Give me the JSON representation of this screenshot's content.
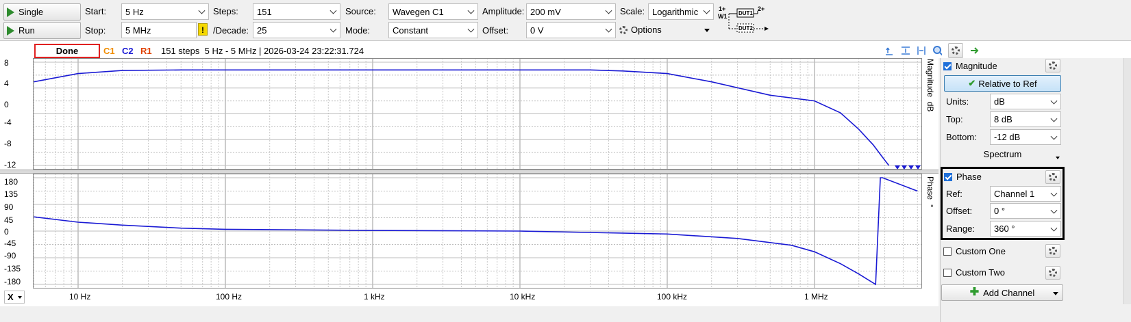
{
  "toolbar": {
    "single_label": "Single",
    "run_label": "Run",
    "start_label": "Start:",
    "start_value": "5 Hz",
    "stop_label": "Stop:",
    "stop_value": "5 MHz",
    "warning_glyph": "!",
    "steps_label": "Steps:",
    "steps_value": "151",
    "decade_label": "/Decade:",
    "decade_value": "25",
    "source_label": "Source:",
    "source_value": "Wavegen C1",
    "mode_label": "Mode:",
    "mode_value": "Constant",
    "amplitude_label": "Amplitude:",
    "amplitude_value": "200 mV",
    "offset_label": "Offset:",
    "offset_value": "0 V",
    "scale_label": "Scale:",
    "scale_value": "Logarithmic",
    "options_label": "Options",
    "diagram": {
      "w1": "W1",
      "in1": "1+",
      "in2": "2+",
      "dut1": "DUT1",
      "dut2": "DUT2"
    }
  },
  "status": {
    "done_label": "Done",
    "c1": "C1",
    "c2": "C2",
    "r1": "R1",
    "info": "151 steps  5 Hz - 5 MHz | 2026-03-24 23:22:31.724",
    "colors": {
      "c1": "#f08c00",
      "c2": "#1a1ad4",
      "r1": "#e04000",
      "done_border": "#e02020"
    }
  },
  "magnitude_plot": {
    "axis_label": "Magnitude  dB",
    "y_ticks": [
      "8",
      "4",
      "0",
      "-4",
      "-8",
      "-12"
    ]
  },
  "phase_plot": {
    "axis_label": "Phase  °",
    "y_ticks": [
      "180",
      "135",
      "90",
      "45",
      "0",
      "-45",
      "-90",
      "-135",
      "-180"
    ]
  },
  "x_axis": {
    "selector": "X",
    "ticks": [
      "10 Hz",
      "100 Hz",
      "1 kHz",
      "10 kHz",
      "100 kHz",
      "1 MHz"
    ]
  },
  "chart_data": [
    {
      "type": "line",
      "title": "",
      "xlabel": "",
      "ylabel": "Magnitude dB",
      "x_scale": "log",
      "xlim": [
        5,
        5000000
      ],
      "ylim": [
        -12,
        8
      ],
      "grid": true,
      "series": [
        {
          "name": "C2",
          "color": "#1a1ad4",
          "x": [
            5,
            10,
            20,
            50,
            100,
            1000,
            10000,
            30000,
            50000,
            100000,
            200000,
            500000,
            1000000,
            1500000,
            2000000,
            2500000,
            3000000,
            3200000
          ],
          "y": [
            4.2,
            5.8,
            6.4,
            6.5,
            6.5,
            6.5,
            6.5,
            6.5,
            6.3,
            5.8,
            4.2,
            1.6,
            0.5,
            -1.8,
            -5.0,
            -8.0,
            -11.0,
            -12.0
          ]
        }
      ]
    },
    {
      "type": "line",
      "title": "",
      "xlabel": "",
      "ylabel": "Phase °",
      "x_scale": "log",
      "xlim": [
        5,
        5000000
      ],
      "ylim": [
        -180,
        180
      ],
      "grid": true,
      "series": [
        {
          "name": "C2",
          "color": "#1a1ad4",
          "x": [
            5,
            10,
            20,
            50,
            100,
            1000,
            10000,
            100000,
            300000,
            700000,
            1000000,
            1500000,
            2000000,
            2600000,
            2800000,
            2900000,
            5000000
          ],
          "y": [
            48,
            30,
            20,
            10,
            6,
            2,
            0,
            -10,
            -25,
            -48,
            -70,
            -110,
            -145,
            -180,
            180,
            180,
            135
          ]
        }
      ]
    }
  ],
  "side_panel": {
    "magnitude_title": "Magnitude",
    "relative_button": "Relative to Ref",
    "units_label": "Units:",
    "units_value": "dB",
    "top_label": "Top:",
    "top_value": "8 dB",
    "bottom_label": "Bottom:",
    "bottom_value": "-12 dB",
    "spectrum_label": "Spectrum",
    "phase_title": "Phase",
    "ref_label": "Ref:",
    "ref_value": "Channel 1",
    "offset_label": "Offset:",
    "offset_value": "0 °",
    "range_label": "Range:",
    "range_value": "360 °",
    "custom_one": "Custom One",
    "custom_two": "Custom Two",
    "add_channel": "Add Channel"
  }
}
